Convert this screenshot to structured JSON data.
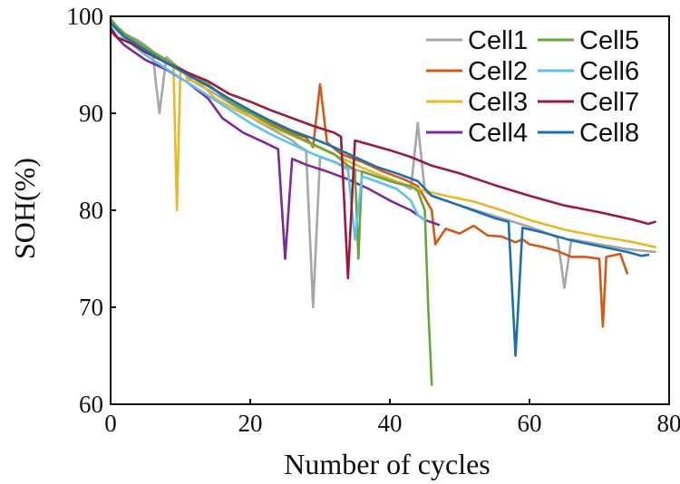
{
  "chart_data": {
    "type": "line",
    "title": "",
    "xlabel": "Number of cycles",
    "ylabel": "SOH(%)",
    "xlim": [
      0,
      80
    ],
    "ylim": [
      60,
      100
    ],
    "xticks": [
      "0",
      "20",
      "40",
      "60",
      "80"
    ],
    "yticks": [
      "60",
      "70",
      "80",
      "90",
      "100"
    ],
    "xtick_values": [
      0,
      20,
      40,
      60,
      80
    ],
    "ytick_values": [
      60,
      70,
      80,
      90,
      100
    ],
    "grid": false,
    "legend_position": "top-right",
    "series": [
      {
        "name": "Cell1",
        "color": "#a6a6a6",
        "points": [
          [
            0,
            99.8
          ],
          [
            1,
            98.8
          ],
          [
            2,
            98.2
          ],
          [
            4,
            97.5
          ],
          [
            5,
            97
          ],
          [
            6,
            96.4
          ],
          [
            6.5,
            93
          ],
          [
            7,
            90
          ],
          [
            7.5,
            93
          ],
          [
            8,
            95.8
          ],
          [
            10,
            94.5
          ],
          [
            12,
            93.2
          ],
          [
            15,
            92
          ],
          [
            18,
            90.6
          ],
          [
            21,
            89.2
          ],
          [
            24,
            88
          ],
          [
            26,
            87.2
          ],
          [
            27,
            86.6
          ],
          [
            28,
            86.2
          ],
          [
            29,
            70
          ],
          [
            30,
            85.5
          ],
          [
            32,
            85
          ],
          [
            34,
            84.4
          ],
          [
            36,
            84
          ],
          [
            38,
            83.5
          ],
          [
            40,
            83
          ],
          [
            42,
            82.6
          ],
          [
            43,
            82.2
          ],
          [
            44,
            89
          ],
          [
            45,
            82
          ],
          [
            46,
            81.5
          ],
          [
            50,
            80.5
          ],
          [
            55,
            79.4
          ],
          [
            60,
            78.3
          ],
          [
            63,
            77.5
          ],
          [
            64,
            77.2
          ],
          [
            65,
            72
          ],
          [
            66,
            77
          ],
          [
            70,
            76.5
          ],
          [
            74,
            76
          ],
          [
            78,
            75.7
          ]
        ]
      },
      {
        "name": "Cell2",
        "color": "#d05a16",
        "points": [
          [
            0,
            99.5
          ],
          [
            2,
            97.8
          ],
          [
            5,
            96.5
          ],
          [
            8,
            95.2
          ],
          [
            11,
            94
          ],
          [
            14,
            92.8
          ],
          [
            17,
            91.5
          ],
          [
            20,
            90.2
          ],
          [
            23,
            89
          ],
          [
            26,
            88
          ],
          [
            28,
            87.5
          ],
          [
            29,
            86.5
          ],
          [
            30,
            93
          ],
          [
            31,
            87
          ],
          [
            33,
            85.8
          ],
          [
            36,
            85
          ],
          [
            39,
            84
          ],
          [
            42,
            83.2
          ],
          [
            44,
            82.5
          ],
          [
            46,
            80
          ],
          [
            46.5,
            76.5
          ],
          [
            48,
            78.1
          ],
          [
            50,
            77.6
          ],
          [
            52,
            78.4
          ],
          [
            54,
            77.4
          ],
          [
            56,
            77.3
          ],
          [
            58,
            76.7
          ],
          [
            59,
            77
          ],
          [
            60,
            76.5
          ],
          [
            62,
            76.2
          ],
          [
            64,
            75.8
          ],
          [
            66,
            75.2
          ],
          [
            68,
            75.2
          ],
          [
            70,
            75
          ],
          [
            70.5,
            68
          ],
          [
            71,
            75.2
          ],
          [
            73,
            75.5
          ],
          [
            74,
            73.5
          ]
        ]
      },
      {
        "name": "Cell3",
        "color": "#e8b82a",
        "points": [
          [
            0,
            99.3
          ],
          [
            2,
            98
          ],
          [
            5,
            96.8
          ],
          [
            8,
            95.5
          ],
          [
            9,
            95
          ],
          [
            9.5,
            80
          ],
          [
            10,
            94.6
          ],
          [
            10.5,
            94.4
          ],
          [
            11,
            93.5
          ],
          [
            13,
            93
          ],
          [
            15,
            91.5
          ],
          [
            18,
            90.3
          ],
          [
            21,
            89.3
          ],
          [
            24,
            88.3
          ],
          [
            27,
            87.4
          ],
          [
            30,
            86.4
          ],
          [
            33,
            85.4
          ],
          [
            36,
            84.4
          ],
          [
            39,
            83.5
          ],
          [
            42,
            82.7
          ],
          [
            45,
            82
          ],
          [
            48,
            81.5
          ],
          [
            52,
            80.9
          ],
          [
            56,
            80
          ],
          [
            60,
            79
          ],
          [
            65,
            78
          ],
          [
            70,
            77.3
          ],
          [
            75,
            76.7
          ],
          [
            78,
            76.2
          ]
        ]
      },
      {
        "name": "Cell4",
        "color": "#7b2a9a",
        "points": [
          [
            0,
            98.5
          ],
          [
            2,
            97
          ],
          [
            5,
            95.5
          ],
          [
            8,
            94.5
          ],
          [
            11,
            93.2
          ],
          [
            14,
            91.5
          ],
          [
            16,
            89.5
          ],
          [
            19,
            88
          ],
          [
            22,
            87
          ],
          [
            24,
            86.3
          ],
          [
            25,
            75
          ],
          [
            26,
            85.3
          ],
          [
            28,
            84.7
          ],
          [
            31,
            84
          ],
          [
            34,
            83.2
          ],
          [
            37,
            82.2
          ],
          [
            40,
            81
          ],
          [
            43,
            80
          ],
          [
            45,
            79
          ],
          [
            47,
            78.5
          ]
        ]
      },
      {
        "name": "Cell5",
        "color": "#6aa637",
        "points": [
          [
            0,
            99.6
          ],
          [
            2,
            98.2
          ],
          [
            5,
            96.8
          ],
          [
            8,
            95.5
          ],
          [
            11,
            94.2
          ],
          [
            14,
            93
          ],
          [
            17,
            91.2
          ],
          [
            20,
            90
          ],
          [
            23,
            88.8
          ],
          [
            26,
            87.8
          ],
          [
            29,
            86.8
          ],
          [
            32,
            85.8
          ],
          [
            34,
            84.6
          ],
          [
            35,
            84.2
          ],
          [
            35.5,
            75
          ],
          [
            36,
            84
          ],
          [
            38,
            83.5
          ],
          [
            41,
            82.8
          ],
          [
            43,
            82.5
          ],
          [
            44,
            82
          ],
          [
            45,
            80
          ],
          [
            45.5,
            70
          ],
          [
            46,
            62
          ]
        ]
      },
      {
        "name": "Cell6",
        "color": "#5ec3ea",
        "points": [
          [
            0,
            99.2
          ],
          [
            2,
            97.7
          ],
          [
            5,
            96
          ],
          [
            8,
            94.6
          ],
          [
            11,
            93.2
          ],
          [
            14,
            91.8
          ],
          [
            17,
            90.4
          ],
          [
            20,
            89
          ],
          [
            23,
            87.8
          ],
          [
            26,
            86.8
          ],
          [
            29,
            85.8
          ],
          [
            32,
            85
          ],
          [
            34,
            84.2
          ],
          [
            35,
            77
          ],
          [
            36,
            83.5
          ],
          [
            38,
            83
          ],
          [
            41,
            82.2
          ],
          [
            43,
            81
          ],
          [
            44,
            79.5
          ],
          [
            45,
            79
          ]
        ]
      },
      {
        "name": "Cell7",
        "color": "#9c1a3b",
        "points": [
          [
            0,
            98.8
          ],
          [
            1,
            97.8
          ],
          [
            3,
            97.2
          ],
          [
            5,
            96.3
          ],
          [
            8,
            95.2
          ],
          [
            11,
            94.2
          ],
          [
            14,
            93.3
          ],
          [
            17,
            92
          ],
          [
            20,
            91.2
          ],
          [
            23,
            90.3
          ],
          [
            26,
            89.5
          ],
          [
            29,
            88.7
          ],
          [
            32,
            88
          ],
          [
            33,
            87.6
          ],
          [
            34,
            73
          ],
          [
            35,
            87.2
          ],
          [
            37,
            86.8
          ],
          [
            40,
            86.2
          ],
          [
            43,
            85.5
          ],
          [
            46,
            84.6
          ],
          [
            50,
            83.8
          ],
          [
            55,
            82.6
          ],
          [
            60,
            81.5
          ],
          [
            65,
            80.5
          ],
          [
            70,
            79.8
          ],
          [
            75,
            79
          ],
          [
            77,
            78.6
          ],
          [
            78,
            78.8
          ]
        ]
      },
      {
        "name": "Cell8",
        "color": "#1f6fb0",
        "points": [
          [
            0,
            99.3
          ],
          [
            2,
            97.9
          ],
          [
            5,
            96.5
          ],
          [
            8,
            95.2
          ],
          [
            11,
            94
          ],
          [
            14,
            92.8
          ],
          [
            17,
            91.5
          ],
          [
            20,
            90.3
          ],
          [
            23,
            89.2
          ],
          [
            26,
            88.2
          ],
          [
            29,
            87.4
          ],
          [
            32,
            86.5
          ],
          [
            35,
            85.5
          ],
          [
            38,
            84.5
          ],
          [
            41,
            83.8
          ],
          [
            44,
            83
          ],
          [
            46,
            81.5
          ],
          [
            50,
            80.5
          ],
          [
            55,
            79.2
          ],
          [
            57,
            78.8
          ],
          [
            58,
            65
          ],
          [
            59,
            78.2
          ],
          [
            62,
            77.7
          ],
          [
            66,
            76.9
          ],
          [
            70,
            76.3
          ],
          [
            74,
            75.7
          ],
          [
            76,
            75.3
          ],
          [
            77,
            75.4
          ]
        ]
      }
    ]
  }
}
